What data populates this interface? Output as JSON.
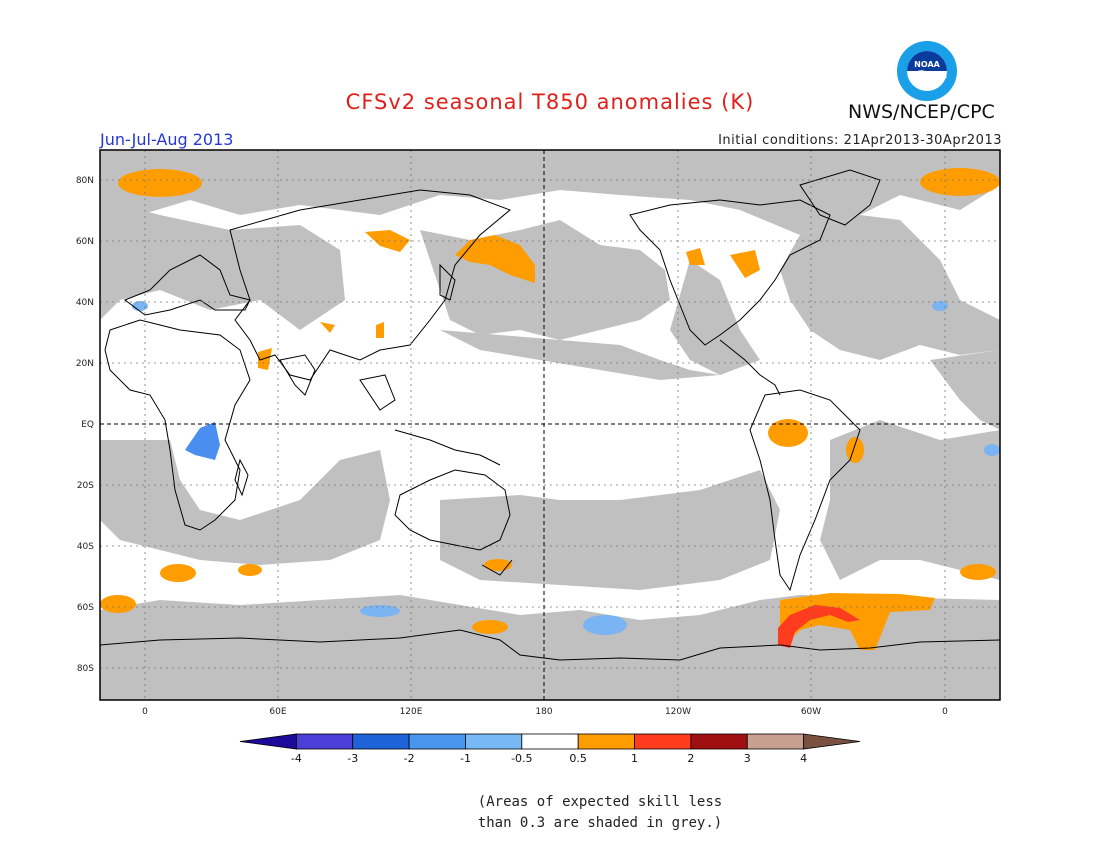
{
  "header": {
    "title": "CFSv2 seasonal T850 anomalies (K)",
    "agency": "NWS/NCEP/CPC",
    "logo_text": "NOAA",
    "season": "Jun-Jul-Aug 2013",
    "initial_conditions": "Initial conditions: 21Apr2013-30Apr2013"
  },
  "map": {
    "lat_labels": [
      "80N",
      "60N",
      "40N",
      "20N",
      "EQ",
      "20S",
      "40S",
      "60S",
      "80S"
    ],
    "lon_labels": [
      "0",
      "60E",
      "120E",
      "180",
      "120W",
      "60W",
      "0"
    ],
    "colors": {
      "grey_skill": "#c0c0c0",
      "orange": "#ff9c00",
      "red": "#ff3c1e",
      "light_blue": "#7ab4f2",
      "blue": "#4a8ff0",
      "coast": "#000000"
    }
  },
  "colorbar": {
    "ticks": [
      "-4",
      "-3",
      "-2",
      "-1",
      "-0.5",
      "0.5",
      "1",
      "2",
      "3",
      "4"
    ],
    "colors": [
      "#1e0a9a",
      "#4a40d8",
      "#1e64d8",
      "#4a96ee",
      "#78b8f4",
      "#ffffff",
      "#ff9c00",
      "#ff3c1e",
      "#a01010",
      "#c8a090",
      "#7a5040"
    ]
  },
  "note": {
    "line1": "(Areas of expected skill less",
    "line2": "than 0.3 are shaded in grey.)"
  }
}
